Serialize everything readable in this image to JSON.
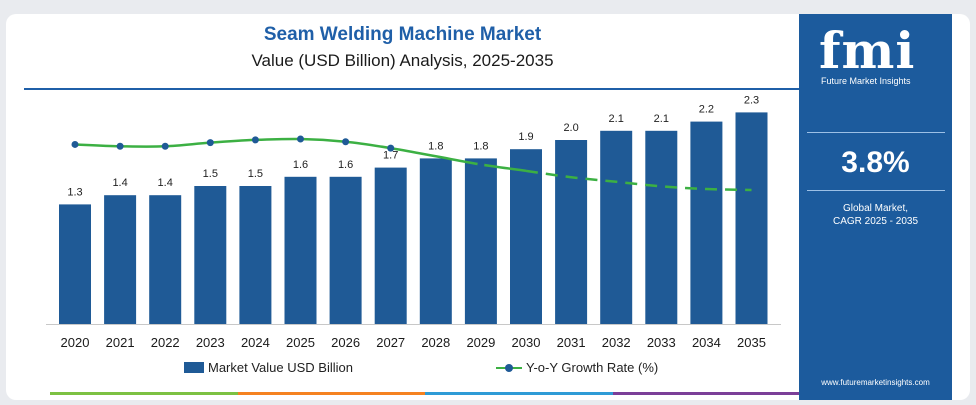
{
  "chart_data": {
    "type": "bar",
    "title": "Seam Welding Machine Market",
    "subtitle": "Value (USD Billion) Analysis, 2025-2035",
    "categories": [
      "2020",
      "2021",
      "2022",
      "2023",
      "2024",
      "2025",
      "2026",
      "2027",
      "2028",
      "2029",
      "2030",
      "2031",
      "2032",
      "2033",
      "2034",
      "2035"
    ],
    "series": [
      {
        "name": "Market Value USD Billion",
        "type": "bar",
        "color": "#1f5a96",
        "values": [
          1.3,
          1.4,
          1.4,
          1.5,
          1.5,
          1.6,
          1.6,
          1.7,
          1.8,
          1.8,
          1.9,
          2.0,
          2.1,
          2.1,
          2.2,
          2.3
        ],
        "labels": [
          "1.3",
          "1.4",
          "1.4",
          "1.5",
          "1.5",
          "1.6",
          "1.6",
          "1.7",
          "1.8",
          "1.8",
          "1.9",
          "2.0",
          "2.1",
          "2.1",
          "2.2",
          "2.3"
        ]
      },
      {
        "name": "Y-o-Y Growth Rate (%)",
        "type": "line",
        "color": "#3cb043",
        "marker_color": "#1f5a96",
        "values": [
          4.55,
          4.45,
          4.45,
          4.65,
          4.8,
          4.85,
          4.7,
          4.35,
          3.9,
          3.45,
          3.1,
          2.75,
          2.5,
          2.25,
          2.1,
          2.05
        ],
        "markers": [
          true,
          true,
          true,
          true,
          true,
          true,
          true,
          true,
          false,
          true,
          false,
          false,
          false,
          false,
          false,
          false
        ],
        "dashed_from_index": 10
      }
    ],
    "legend_position": "bottom-center",
    "grid": false
  },
  "legend": {
    "bar_label": "Market Value USD Billion",
    "line_label": "Y-o-Y Growth Rate (%)"
  },
  "sidebar": {
    "logo_text": "fmi",
    "logo_tagline": "Future Market Insights",
    "cagr_value": "3.8%",
    "cagr_caption_line1": "Global Market,",
    "cagr_caption_line2": "CAGR 2025 - 2035",
    "url": "www.futuremarketinsights.com",
    "background_color": "#1c5b9d"
  },
  "footer_colors": [
    "#7cc142",
    "#f58220",
    "#2e9bd6",
    "#7b3f98"
  ]
}
